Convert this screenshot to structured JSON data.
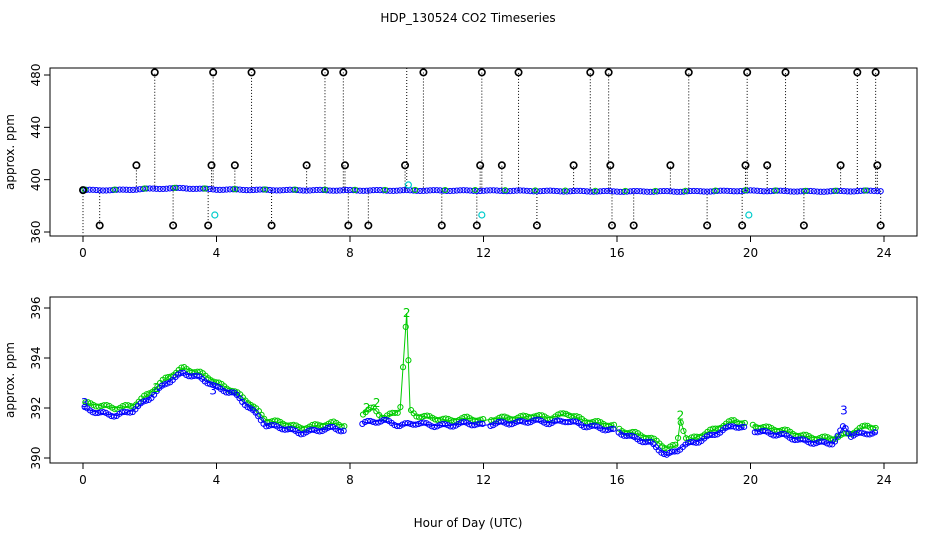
{
  "title": "HDP_130524  CO2 Timeseries",
  "xlabel": "Hour of Day (UTC)",
  "colors": {
    "black": "#000000",
    "blue": "#0000ff",
    "green": "#00cc00",
    "cyan": "#00cccc"
  },
  "chart_data": [
    {
      "type": "scatter",
      "ylabel": "approx. ppm",
      "xlim": [
        0,
        24
      ],
      "ylim": [
        360,
        480
      ],
      "xticks": [
        0,
        4,
        8,
        12,
        16,
        20,
        24
      ],
      "yticks": [
        360,
        400,
        440,
        480
      ],
      "grid": false,
      "baseline": [
        [
          0,
          392
        ],
        [
          1,
          392
        ],
        [
          2,
          393
        ],
        [
          3,
          393.5
        ],
        [
          4,
          392.5
        ],
        [
          6,
          392
        ],
        [
          8,
          391.8
        ],
        [
          12,
          391.6
        ],
        [
          16,
          391
        ],
        [
          18,
          391
        ],
        [
          20,
          391.5
        ],
        [
          22,
          391
        ],
        [
          24,
          391.5
        ]
      ],
      "spikes": [
        {
          "x": 0.5,
          "y": 365
        },
        {
          "x": 1.6,
          "y": 411
        },
        {
          "x": 2.15,
          "y": 482
        },
        {
          "x": 2.7,
          "y": 365
        },
        {
          "x": 3.75,
          "y": 365
        },
        {
          "x": 3.85,
          "y": 411
        },
        {
          "x": 3.9,
          "y": 482
        },
        {
          "x": 4.55,
          "y": 411
        },
        {
          "x": 5.05,
          "y": 482
        },
        {
          "x": 5.65,
          "y": 365
        },
        {
          "x": 6.7,
          "y": 411
        },
        {
          "x": 7.25,
          "y": 482
        },
        {
          "x": 7.8,
          "y": 482
        },
        {
          "x": 7.85,
          "y": 411
        },
        {
          "x": 7.95,
          "y": 365
        },
        {
          "x": 8.55,
          "y": 365
        },
        {
          "x": 9.65,
          "y": 411
        },
        {
          "x": 10.2,
          "y": 482
        },
        {
          "x": 10.75,
          "y": 365
        },
        {
          "x": 11.8,
          "y": 365
        },
        {
          "x": 11.9,
          "y": 411
        },
        {
          "x": 11.95,
          "y": 482
        },
        {
          "x": 12.55,
          "y": 411
        },
        {
          "x": 13.05,
          "y": 482
        },
        {
          "x": 13.6,
          "y": 365
        },
        {
          "x": 14.7,
          "y": 411
        },
        {
          "x": 15.2,
          "y": 482
        },
        {
          "x": 15.75,
          "y": 482
        },
        {
          "x": 15.8,
          "y": 411
        },
        {
          "x": 15.85,
          "y": 365
        },
        {
          "x": 16.5,
          "y": 365
        },
        {
          "x": 17.6,
          "y": 411
        },
        {
          "x": 18.15,
          "y": 482
        },
        {
          "x": 18.7,
          "y": 365
        },
        {
          "x": 19.75,
          "y": 365
        },
        {
          "x": 19.85,
          "y": 411
        },
        {
          "x": 19.9,
          "y": 482
        },
        {
          "x": 20.5,
          "y": 411
        },
        {
          "x": 21.05,
          "y": 482
        },
        {
          "x": 21.6,
          "y": 365
        },
        {
          "x": 22.7,
          "y": 411
        },
        {
          "x": 23.2,
          "y": 482
        },
        {
          "x": 23.75,
          "y": 482
        },
        {
          "x": 23.8,
          "y": 411
        },
        {
          "x": 23.9,
          "y": 365
        }
      ],
      "tall_line_x": 9.7,
      "cyan_points": [
        {
          "x": 3.95,
          "y": 373
        },
        {
          "x": 9.75,
          "y": 396
        },
        {
          "x": 11.95,
          "y": 373
        },
        {
          "x": 19.95,
          "y": 373
        }
      ]
    },
    {
      "type": "line",
      "ylabel": "approx. ppm",
      "xlim": [
        0,
        24
      ],
      "ylim": [
        390,
        396
      ],
      "xticks": [
        0,
        4,
        8,
        12,
        16,
        20,
        24
      ],
      "yticks": [
        390,
        392,
        394,
        396
      ],
      "grid": false,
      "series": [
        {
          "label": "3",
          "color": "#0000ff",
          "x": [
            0,
            0.5,
            1,
            1.5,
            2,
            2.5,
            3,
            3.5,
            3.8,
            4,
            4.5,
            5,
            5.5,
            6,
            6.5,
            7,
            7.5,
            7.8,
            8.4,
            9,
            9.5,
            10,
            10.5,
            11,
            11.5,
            12,
            12.5,
            13,
            13.5,
            14,
            14.5,
            15,
            15.5,
            15.9,
            16.1,
            16.5,
            17,
            17.5,
            17.8,
            18,
            18.5,
            19,
            19.5,
            19.8,
            20.1,
            20.5,
            21,
            21.5,
            22,
            22.5,
            22.8,
            23,
            23.5,
            23.8
          ],
          "values": [
            392.0,
            391.8,
            391.7,
            391.9,
            392.4,
            393.0,
            393.4,
            393.2,
            393.0,
            392.8,
            392.6,
            392.0,
            391.3,
            391.2,
            391.0,
            391.1,
            391.2,
            391.1,
            391.4,
            391.5,
            391.3,
            391.4,
            391.3,
            391.3,
            391.4,
            391.3,
            391.4,
            391.4,
            391.5,
            391.4,
            391.5,
            391.3,
            391.2,
            391.1,
            391.0,
            390.8,
            390.6,
            390.1,
            390.3,
            390.5,
            390.7,
            391.0,
            391.3,
            391.2,
            391.1,
            391.0,
            390.9,
            390.7,
            390.6,
            390.6,
            391.3,
            390.9,
            391.0,
            391.0
          ]
        },
        {
          "label": "2",
          "color": "#00cc00",
          "x": [
            0,
            0.5,
            1,
            1.5,
            2,
            2.5,
            3,
            3.5,
            3.8,
            4,
            4.5,
            5,
            5.5,
            6,
            6.5,
            7,
            7.5,
            7.8,
            8.4,
            8.7,
            9,
            9.5,
            9.7,
            9.8,
            10,
            10.5,
            11,
            11.5,
            12,
            12.5,
            13,
            13.5,
            14,
            14.5,
            15,
            15.5,
            15.9,
            16.1,
            16.5,
            17,
            17.5,
            17.8,
            17.9,
            18.1,
            18.5,
            19,
            19.5,
            19.8,
            20.1,
            20.5,
            21,
            21.5,
            22,
            22.5,
            23,
            23.5,
            23.8
          ],
          "values": [
            392.2,
            392.1,
            392.0,
            392.1,
            392.6,
            393.2,
            393.6,
            393.4,
            393.2,
            393.0,
            392.7,
            392.2,
            391.5,
            391.4,
            391.2,
            391.3,
            391.4,
            391.3,
            391.8,
            392.0,
            391.6,
            391.9,
            395.8,
            391.9,
            391.7,
            391.6,
            391.5,
            391.6,
            391.5,
            391.6,
            391.6,
            391.7,
            391.6,
            391.8,
            391.5,
            391.4,
            391.3,
            391.1,
            391.0,
            390.8,
            390.4,
            390.5,
            391.5,
            390.7,
            390.9,
            391.2,
            391.5,
            391.4,
            391.3,
            391.2,
            391.1,
            390.9,
            390.8,
            390.8,
            391.0,
            391.3,
            391.2
          ]
        }
      ],
      "symbol_labels": [
        {
          "text": "3",
          "x": 0.05,
          "y": 392.2,
          "color": "#0000ff"
        },
        {
          "text": "2",
          "x": 2.2,
          "y": 392.8,
          "color": "#00cc00"
        },
        {
          "text": "3",
          "x": 3.9,
          "y": 392.7,
          "color": "#0000ff"
        },
        {
          "text": "2",
          "x": 8.5,
          "y": 392.0,
          "color": "#00cc00"
        },
        {
          "text": "2",
          "x": 8.8,
          "y": 392.2,
          "color": "#00cc00"
        },
        {
          "text": "2",
          "x": 9.7,
          "y": 395.8,
          "color": "#00cc00"
        },
        {
          "text": "2",
          "x": 17.9,
          "y": 391.7,
          "color": "#00cc00"
        },
        {
          "text": "3",
          "x": 22.8,
          "y": 391.9,
          "color": "#0000ff"
        }
      ]
    }
  ]
}
